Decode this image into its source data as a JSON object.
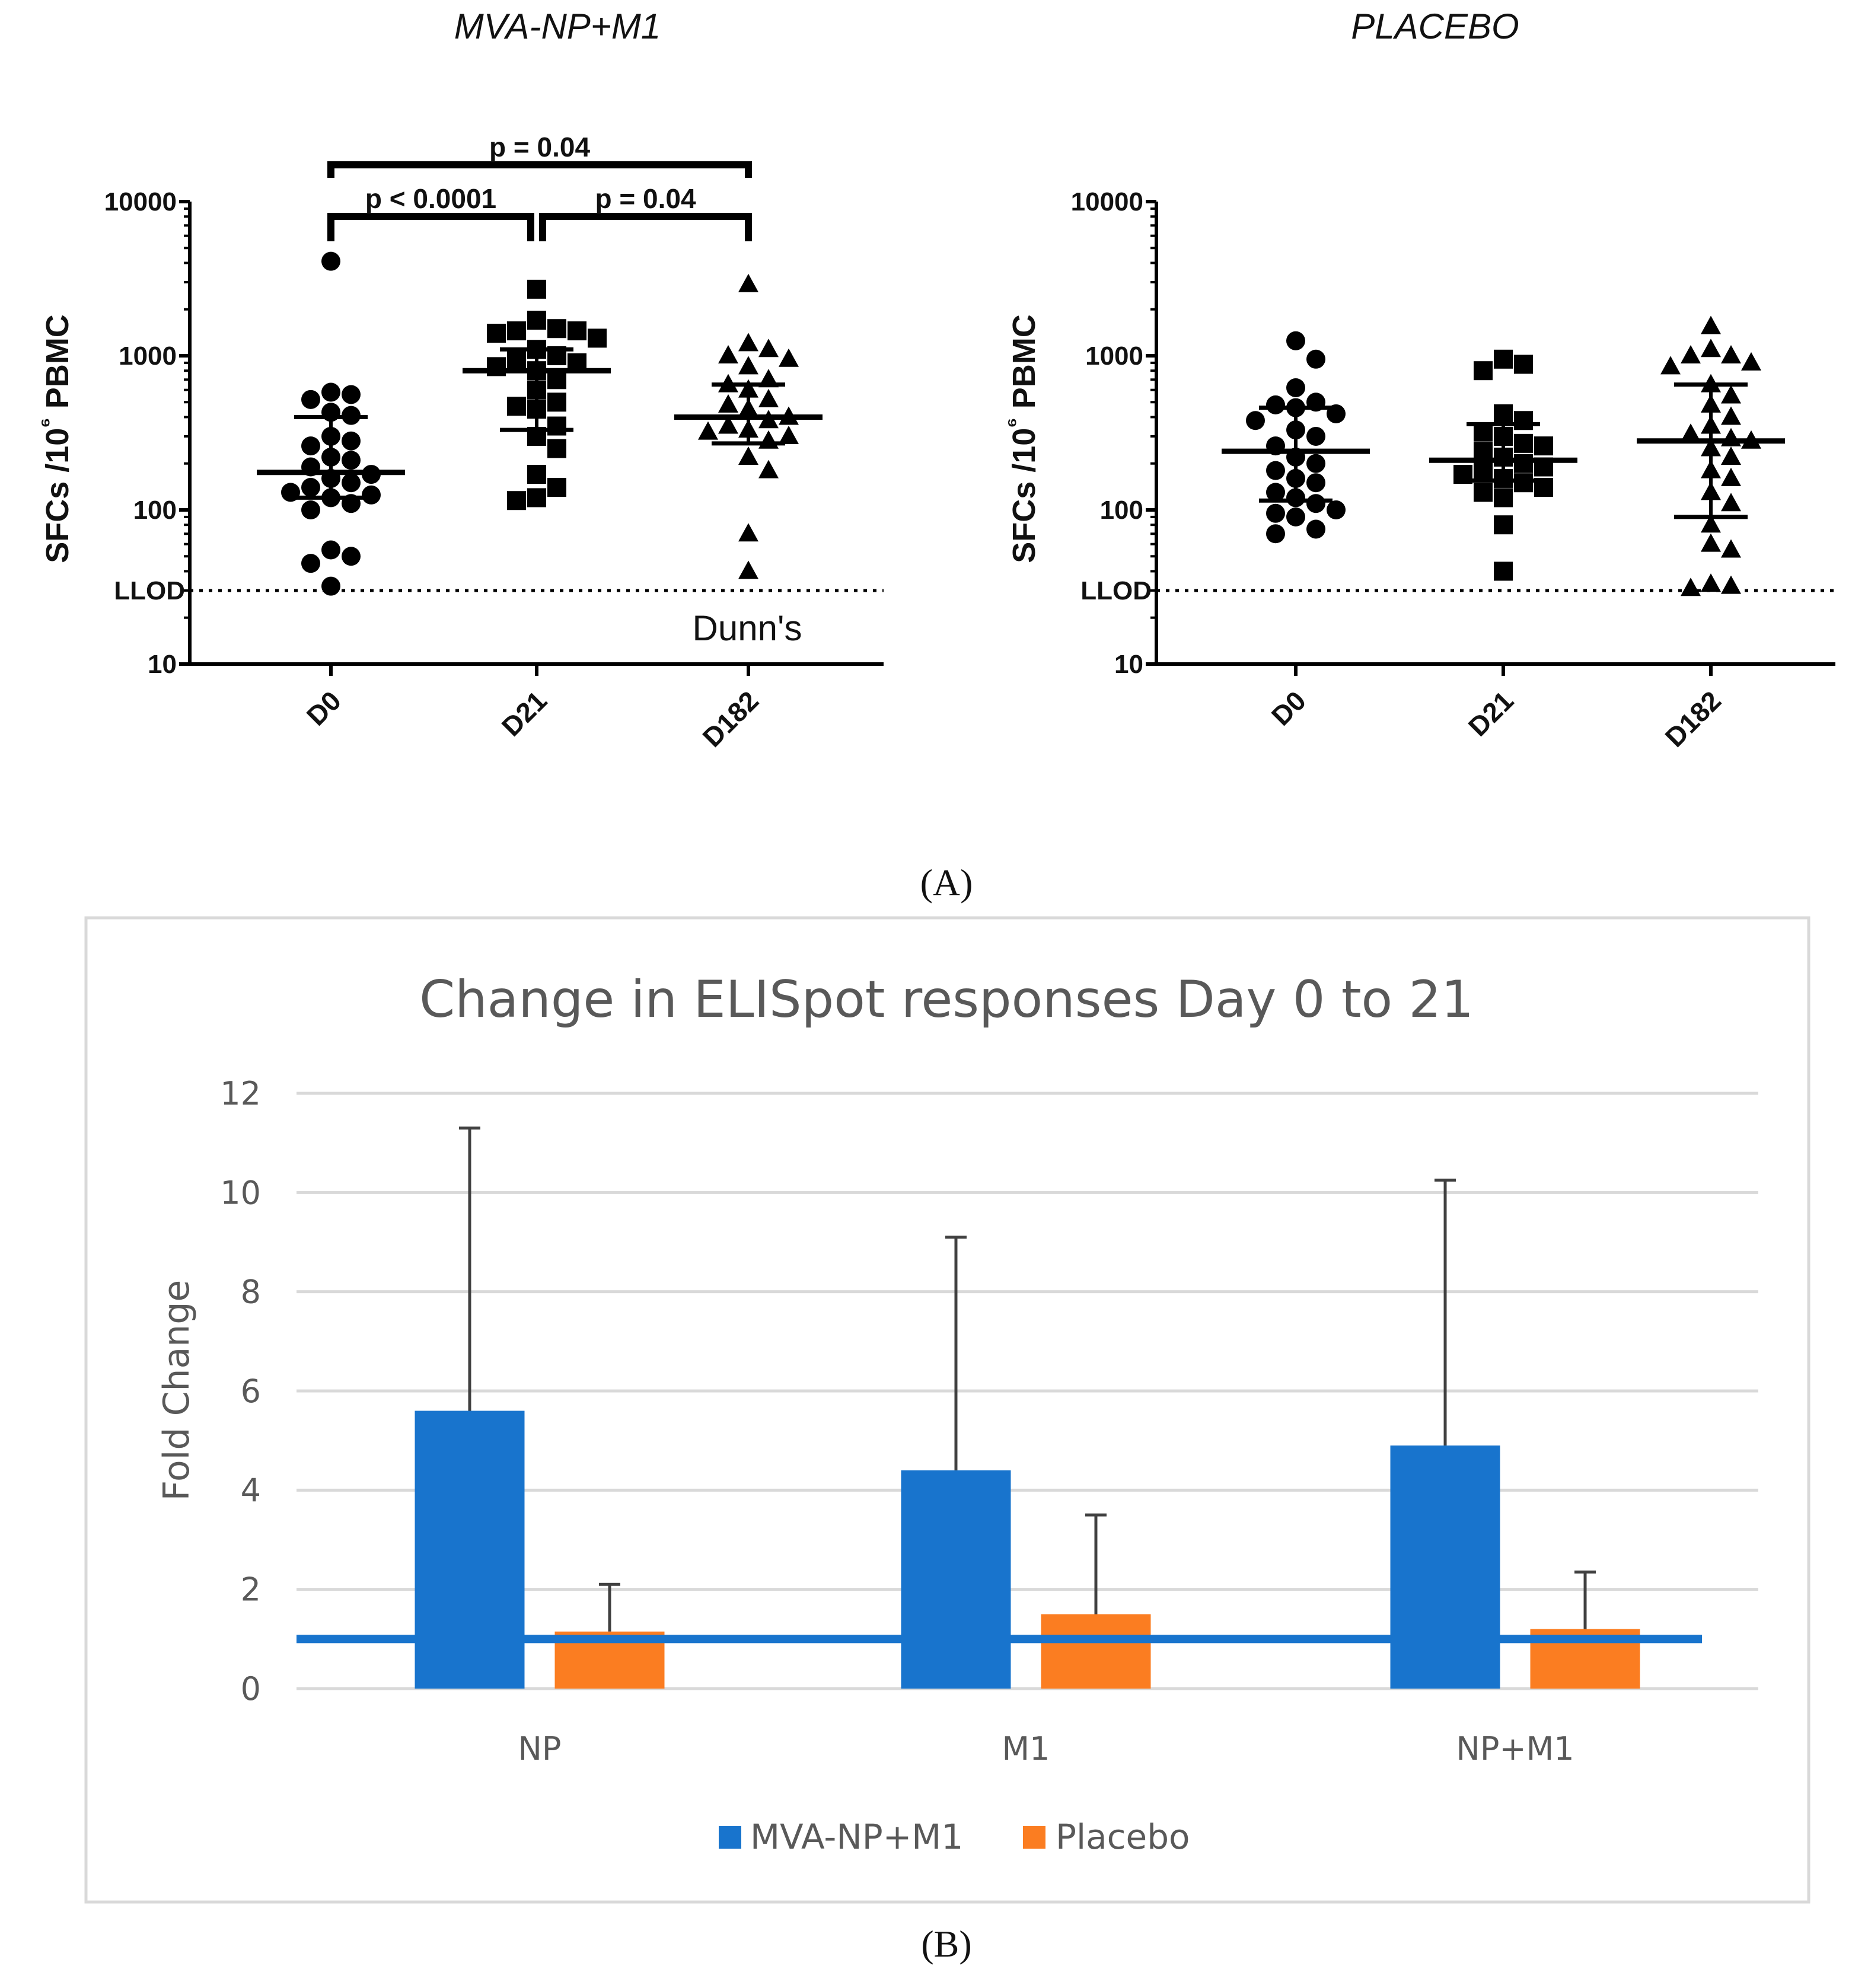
{
  "panel_a_label": "(A)",
  "panel_b_label": "(B)",
  "chart_data": [
    {
      "type": "scatter",
      "title": "MVA-NP+M1",
      "ylabel": "SFCs /10⁶ PBMC",
      "yscale": "log",
      "ylim": [
        10,
        10000
      ],
      "yticks": [
        "10",
        "100",
        "1000",
        "10000"
      ],
      "llod": {
        "label": "LLOD",
        "value": 30
      },
      "categories": [
        "D0",
        "D21",
        "D182"
      ],
      "markers": [
        "circle",
        "square",
        "triangle"
      ],
      "series": [
        {
          "values": [
            4100,
            580,
            560,
            520,
            430,
            410,
            300,
            280,
            260,
            220,
            210,
            190,
            170,
            160,
            150,
            140,
            130,
            125,
            120,
            110,
            100,
            55,
            50,
            45,
            32
          ],
          "median": 175,
          "iqr": [
            120,
            400
          ]
        },
        {
          "values": [
            2700,
            1700,
            1500,
            1450,
            1450,
            1400,
            1300,
            1100,
            1000,
            950,
            900,
            850,
            800,
            700,
            600,
            500,
            470,
            450,
            350,
            300,
            250,
            170,
            140,
            120,
            115
          ],
          "median": 800,
          "iqr": [
            330,
            1100
          ]
        },
        {
          "values": [
            2900,
            1200,
            1100,
            1000,
            950,
            850,
            700,
            650,
            600,
            520,
            480,
            450,
            400,
            380,
            350,
            330,
            320,
            300,
            280,
            220,
            180,
            70,
            40
          ],
          "median": 400,
          "iqr": [
            270,
            650
          ]
        }
      ],
      "comparisons": [
        {
          "from": "D0",
          "to": "D21",
          "label": "p < 0.0001"
        },
        {
          "from": "D21",
          "to": "D182",
          "label": "p = 0.04"
        },
        {
          "from": "D0",
          "to": "D182",
          "label": "p =  0.04"
        }
      ],
      "annotation": "Dunn's"
    },
    {
      "type": "scatter",
      "title": "PLACEBO",
      "ylabel": "SFCs /10⁶ PBMC",
      "yscale": "log",
      "ylim": [
        10,
        10000
      ],
      "yticks": [
        "10",
        "100",
        "1000",
        "10000"
      ],
      "llod": {
        "label": "LLOD",
        "value": 30
      },
      "categories": [
        "D0",
        "D21",
        "D182"
      ],
      "markers": [
        "circle",
        "square",
        "triangle"
      ],
      "series": [
        {
          "values": [
            1250,
            950,
            620,
            500,
            480,
            460,
            420,
            380,
            330,
            300,
            260,
            220,
            200,
            180,
            160,
            150,
            130,
            120,
            110,
            100,
            95,
            90,
            75,
            70
          ],
          "median": 240,
          "iqr": [
            115,
            460
          ]
        },
        {
          "values": [
            950,
            880,
            800,
            420,
            380,
            320,
            300,
            270,
            260,
            240,
            220,
            200,
            190,
            180,
            170,
            160,
            150,
            140,
            130,
            120,
            80,
            40
          ],
          "median": 210,
          "iqr": [
            155,
            360
          ]
        },
        {
          "values": [
            1550,
            1100,
            1000,
            1000,
            900,
            850,
            650,
            550,
            480,
            400,
            350,
            310,
            290,
            280,
            250,
            220,
            180,
            160,
            130,
            110,
            80,
            60,
            55,
            33,
            32,
            31
          ],
          "median": 280,
          "iqr": [
            90,
            650
          ]
        }
      ]
    },
    {
      "type": "bar",
      "title": "Change in ELISpot responses Day 0 to 21",
      "ylabel": "Fold Change",
      "ylim": [
        0,
        12
      ],
      "yticks": [
        "0",
        "2",
        "4",
        "6",
        "8",
        "10",
        "12"
      ],
      "categories": [
        "NP",
        "M1",
        "NP+M1"
      ],
      "series": [
        {
          "name": "MVA-NP+M1",
          "color": "#1874CD",
          "values": [
            5.6,
            4.4,
            4.9
          ],
          "error_upper": [
            11.3,
            9.1,
            10.25
          ]
        },
        {
          "name": "Placebo",
          "color": "#FB7D21",
          "values": [
            1.15,
            1.5,
            1.2
          ],
          "error_upper": [
            2.1,
            3.5,
            2.35
          ]
        }
      ],
      "reference_line": {
        "value": 1,
        "color": "#1874CD"
      },
      "legend_position": "bottom"
    }
  ]
}
